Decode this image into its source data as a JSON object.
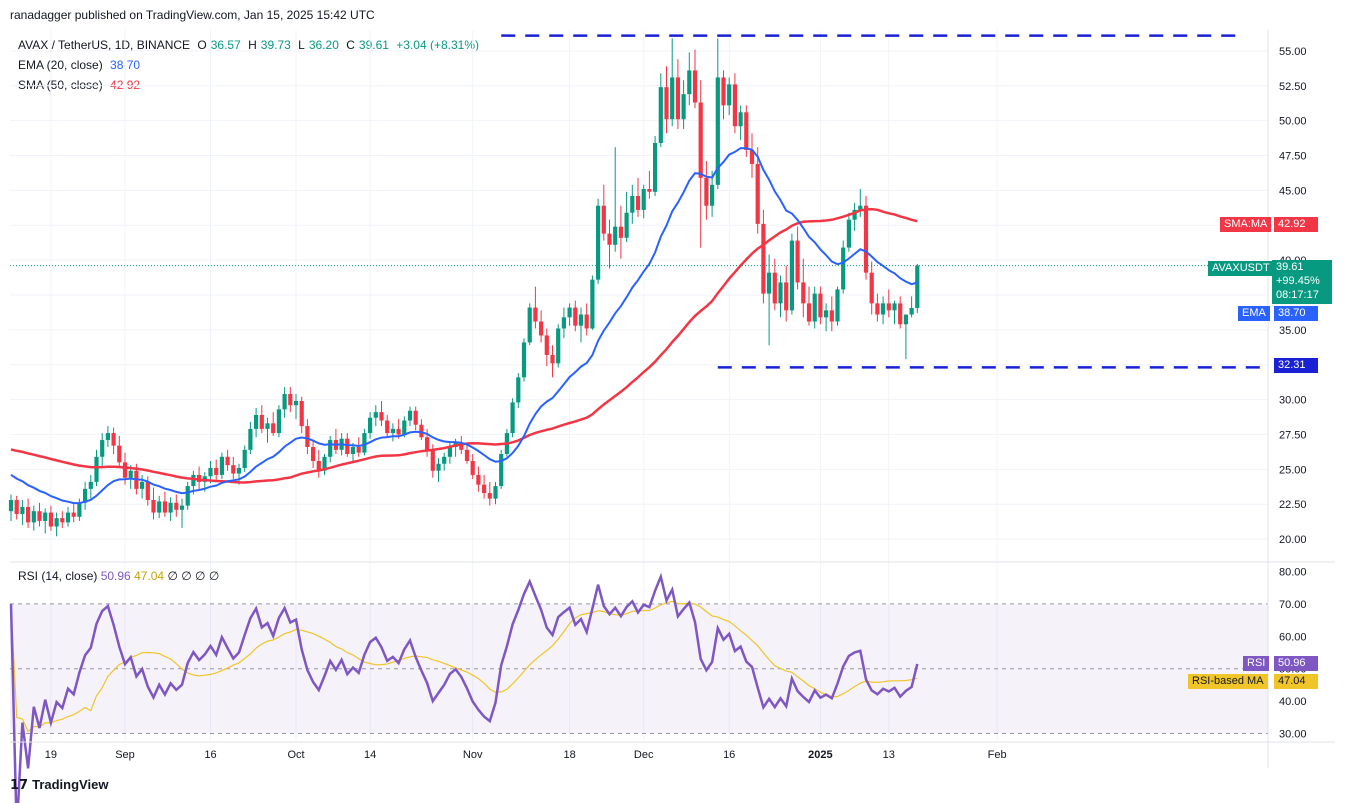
{
  "header": {
    "published": "ranadagger published on TradingView.com, Jan 15, 2025 15:42 UTC"
  },
  "legend": {
    "symbol": "AVAX / TetherUS, 1D, BINANCE",
    "o_label": "O",
    "o": "36.57",
    "h_label": "H",
    "h": "39.73",
    "l_label": "L",
    "l": "36.20",
    "c_label": "C",
    "c": "39.61",
    "change": "+3.04 (+8.31%)",
    "ema_label": "EMA (20, close)",
    "ema_value": "38.70",
    "sma_label": "SMA (50, close)",
    "sma_value": "42.92"
  },
  "rsi_legend": {
    "label": "RSI (14, close)",
    "rsi": "50.96",
    "rsima": "47.04",
    "extras": "∅ ∅ ∅ ∅"
  },
  "currency": "USDT",
  "tags": {
    "sma": {
      "label": "SMA:MA",
      "value": "42.92"
    },
    "price": {
      "label": "AVAXUSDT",
      "value": "39.61",
      "change": "+99.45%",
      "countdown": "08:17:17"
    },
    "ema": {
      "label": "EMA",
      "value": "38.70"
    },
    "support": "32.31",
    "rsi": {
      "label": "RSI",
      "value": "50.96"
    },
    "rsima": {
      "label": "RSI-based MA",
      "value": "47.04"
    }
  },
  "footer": {
    "brand": "TradingView"
  },
  "colors": {
    "up": "#089981",
    "down": "#f23645",
    "ema": "#2962ff",
    "sma": "#f23645",
    "rsi": "#7e57c2",
    "rsima": "#f0c52a",
    "level": "#1a21d4"
  },
  "chart_data": {
    "type": "candlestick",
    "price_axis": {
      "ticks": [
        "20.00",
        "22.50",
        "25.00",
        "27.50",
        "30.00",
        "32.50",
        "35.00",
        "37.50",
        "40.00",
        "42.50",
        "45.00",
        "47.50",
        "50.00",
        "52.50",
        "55.00"
      ],
      "range": [
        18.5,
        56.5
      ]
    },
    "rsi_axis": {
      "ticks": [
        "30.00",
        "40.00",
        "50.00",
        "60.00",
        "70.00",
        "80.00"
      ],
      "range": [
        28,
        82
      ],
      "bands": [
        30,
        70
      ]
    },
    "x_ticks": [
      "19",
      "Sep",
      "16",
      "Oct",
      "14",
      "Nov",
      "18",
      "Dec",
      "16",
      "2025",
      "13",
      "Feb"
    ],
    "levels": [
      {
        "name": "resistance",
        "value": 56.1
      },
      {
        "name": "support",
        "value": 32.31
      }
    ],
    "start_date": "2024-08-12",
    "candles": [
      [
        22.0,
        23.2,
        21.3,
        22.8
      ],
      [
        22.8,
        23.1,
        21.4,
        21.8
      ],
      [
        21.8,
        22.8,
        21.0,
        22.3
      ],
      [
        22.3,
        22.9,
        20.8,
        21.2
      ],
      [
        21.2,
        22.4,
        20.6,
        22.0
      ],
      [
        22.0,
        22.6,
        20.9,
        21.3
      ],
      [
        21.3,
        22.2,
        20.4,
        21.9
      ],
      [
        21.9,
        22.4,
        20.6,
        20.9
      ],
      [
        20.9,
        21.9,
        20.2,
        21.5
      ],
      [
        21.5,
        22.0,
        20.8,
        21.2
      ],
      [
        21.2,
        22.3,
        20.9,
        21.9
      ],
      [
        21.9,
        22.5,
        21.2,
        21.6
      ],
      [
        21.6,
        22.9,
        21.3,
        22.6
      ],
      [
        22.6,
        24.1,
        22.1,
        23.6
      ],
      [
        23.6,
        24.6,
        22.9,
        24.1
      ],
      [
        24.1,
        26.4,
        23.8,
        25.9
      ],
      [
        25.9,
        27.6,
        25.2,
        27.1
      ],
      [
        27.1,
        28.1,
        26.6,
        27.6
      ],
      [
        27.6,
        28.0,
        26.1,
        26.7
      ],
      [
        26.7,
        27.4,
        25.1,
        25.5
      ],
      [
        25.5,
        26.2,
        23.9,
        24.4
      ],
      [
        24.4,
        25.3,
        23.6,
        24.9
      ],
      [
        24.9,
        25.4,
        23.2,
        23.6
      ],
      [
        23.6,
        24.6,
        22.9,
        24.1
      ],
      [
        24.1,
        24.5,
        22.4,
        22.8
      ],
      [
        22.8,
        23.7,
        21.4,
        21.9
      ],
      [
        21.9,
        23.1,
        21.5,
        22.7
      ],
      [
        22.7,
        23.4,
        21.6,
        21.9
      ],
      [
        21.9,
        23.0,
        21.3,
        22.6
      ],
      [
        22.6,
        23.2,
        21.6,
        22.1
      ],
      [
        22.1,
        22.9,
        20.8,
        22.4
      ],
      [
        22.4,
        24.1,
        22.1,
        23.8
      ],
      [
        23.8,
        24.9,
        23.2,
        24.6
      ],
      [
        24.6,
        25.2,
        23.6,
        24.1
      ],
      [
        24.1,
        24.8,
        23.4,
        24.5
      ],
      [
        24.5,
        25.6,
        24.0,
        25.1
      ],
      [
        25.1,
        25.7,
        24.2,
        24.6
      ],
      [
        24.6,
        26.2,
        24.3,
        25.9
      ],
      [
        25.9,
        26.4,
        24.9,
        25.3
      ],
      [
        25.3,
        25.9,
        24.3,
        24.7
      ],
      [
        24.7,
        25.4,
        23.9,
        25.1
      ],
      [
        25.1,
        26.7,
        24.8,
        26.4
      ],
      [
        26.4,
        28.4,
        26.1,
        27.9
      ],
      [
        27.9,
        29.4,
        27.3,
        28.9
      ],
      [
        28.9,
        29.6,
        27.6,
        27.9
      ],
      [
        27.9,
        28.7,
        26.9,
        28.3
      ],
      [
        28.3,
        29.1,
        27.4,
        27.6
      ],
      [
        27.6,
        29.6,
        27.3,
        29.3
      ],
      [
        29.3,
        30.9,
        28.7,
        30.4
      ],
      [
        30.4,
        30.9,
        29.1,
        29.6
      ],
      [
        29.6,
        30.4,
        28.6,
        29.9
      ],
      [
        29.9,
        30.2,
        27.6,
        28.1
      ],
      [
        28.1,
        28.6,
        26.1,
        26.6
      ],
      [
        26.6,
        27.1,
        25.1,
        25.6
      ],
      [
        25.6,
        26.4,
        24.4,
        24.9
      ],
      [
        24.9,
        26.1,
        24.6,
        25.9
      ],
      [
        25.9,
        27.4,
        25.5,
        27.1
      ],
      [
        27.1,
        27.9,
        26.1,
        26.4
      ],
      [
        26.4,
        27.6,
        26.0,
        27.2
      ],
      [
        27.2,
        27.6,
        25.9,
        26.1
      ],
      [
        26.1,
        26.9,
        25.5,
        26.6
      ],
      [
        26.6,
        27.3,
        25.9,
        26.2
      ],
      [
        26.2,
        27.9,
        26.0,
        27.6
      ],
      [
        27.6,
        29.1,
        27.2,
        28.7
      ],
      [
        28.7,
        29.6,
        28.1,
        29.1
      ],
      [
        29.1,
        29.9,
        28.1,
        28.5
      ],
      [
        28.5,
        28.9,
        27.3,
        27.6
      ],
      [
        27.6,
        28.3,
        27.0,
        27.9
      ],
      [
        27.9,
        28.6,
        27.2,
        27.5
      ],
      [
        27.5,
        28.8,
        27.3,
        28.5
      ],
      [
        28.5,
        29.5,
        28.1,
        29.2
      ],
      [
        29.2,
        29.5,
        27.8,
        28.2
      ],
      [
        28.2,
        28.6,
        27.1,
        27.3
      ],
      [
        27.3,
        27.9,
        25.9,
        26.4
      ],
      [
        26.4,
        26.8,
        24.4,
        24.9
      ],
      [
        24.9,
        25.8,
        24.1,
        25.4
      ],
      [
        25.4,
        26.2,
        24.9,
        25.9
      ],
      [
        25.9,
        26.9,
        25.4,
        26.6
      ],
      [
        26.6,
        27.2,
        25.9,
        26.9
      ],
      [
        26.9,
        27.4,
        26.1,
        26.4
      ],
      [
        26.4,
        26.9,
        25.4,
        25.6
      ],
      [
        25.6,
        26.1,
        24.3,
        24.6
      ],
      [
        24.6,
        25.2,
        23.4,
        23.9
      ],
      [
        23.9,
        24.6,
        22.9,
        23.3
      ],
      [
        23.3,
        24.1,
        22.4,
        22.9
      ],
      [
        22.9,
        24.1,
        22.5,
        23.8
      ],
      [
        23.8,
        26.4,
        23.6,
        26.1
      ],
      [
        26.1,
        27.9,
        25.9,
        27.6
      ],
      [
        27.6,
        30.1,
        27.3,
        29.8
      ],
      [
        29.8,
        31.9,
        29.4,
        31.6
      ],
      [
        31.6,
        34.4,
        31.3,
        34.1
      ],
      [
        34.1,
        36.9,
        33.9,
        36.6
      ],
      [
        36.6,
        38.1,
        35.1,
        35.6
      ],
      [
        35.6,
        36.4,
        34.1,
        34.6
      ],
      [
        34.6,
        35.1,
        32.4,
        33.2
      ],
      [
        33.2,
        33.9,
        31.6,
        32.6
      ],
      [
        32.6,
        35.4,
        32.3,
        35.1
      ],
      [
        35.1,
        36.6,
        34.4,
        35.9
      ],
      [
        35.9,
        36.9,
        35.3,
        36.6
      ],
      [
        36.6,
        37.1,
        34.9,
        35.3
      ],
      [
        35.3,
        36.6,
        34.1,
        36.1
      ],
      [
        36.1,
        36.9,
        34.6,
        35.1
      ],
      [
        35.1,
        38.9,
        35.0,
        38.6
      ],
      [
        38.6,
        44.4,
        38.3,
        43.9
      ],
      [
        43.9,
        45.4,
        41.4,
        41.9
      ],
      [
        41.9,
        42.9,
        39.4,
        41.1
      ],
      [
        41.1,
        48.1,
        40.6,
        42.4
      ],
      [
        42.4,
        43.9,
        40.1,
        41.6
      ],
      [
        41.6,
        44.9,
        41.3,
        43.4
      ],
      [
        43.4,
        45.4,
        42.6,
        44.6
      ],
      [
        44.6,
        45.9,
        43.1,
        43.6
      ],
      [
        43.6,
        45.4,
        43.0,
        45.1
      ],
      [
        45.1,
        46.4,
        44.4,
        44.9
      ],
      [
        44.9,
        48.9,
        44.6,
        48.4
      ],
      [
        48.4,
        53.4,
        48.1,
        52.4
      ],
      [
        52.4,
        53.9,
        49.1,
        50.1
      ],
      [
        50.1,
        55.9,
        49.6,
        53.1
      ],
      [
        53.1,
        54.4,
        49.4,
        50.1
      ],
      [
        50.1,
        52.9,
        49.4,
        51.9
      ],
      [
        51.9,
        54.9,
        51.1,
        53.6
      ],
      [
        53.6,
        55.1,
        50.9,
        51.3
      ],
      [
        51.3,
        52.9,
        40.9,
        45.9
      ],
      [
        45.9,
        47.1,
        42.9,
        43.9
      ],
      [
        43.9,
        46.4,
        43.1,
        45.4
      ],
      [
        45.4,
        55.9,
        45.1,
        53.1
      ],
      [
        53.1,
        53.6,
        50.1,
        51.1
      ],
      [
        51.1,
        53.1,
        50.4,
        52.6
      ],
      [
        52.6,
        53.4,
        49.1,
        49.6
      ],
      [
        49.6,
        51.1,
        48.6,
        50.6
      ],
      [
        50.6,
        51.1,
        47.4,
        47.9
      ],
      [
        47.9,
        49.1,
        45.9,
        46.9
      ],
      [
        46.9,
        48.1,
        41.9,
        42.6
      ],
      [
        42.6,
        43.6,
        36.9,
        37.6
      ],
      [
        37.6,
        40.4,
        33.9,
        39.1
      ],
      [
        39.1,
        40.1,
        36.4,
        36.9
      ],
      [
        36.9,
        38.9,
        35.9,
        38.4
      ],
      [
        38.4,
        39.6,
        35.6,
        36.4
      ],
      [
        36.4,
        41.9,
        36.1,
        41.4
      ],
      [
        41.4,
        42.4,
        37.9,
        38.4
      ],
      [
        38.4,
        40.1,
        35.9,
        36.9
      ],
      [
        36.9,
        38.1,
        35.3,
        35.6
      ],
      [
        35.6,
        38.1,
        35.1,
        37.6
      ],
      [
        37.6,
        38.1,
        35.4,
        35.9
      ],
      [
        35.9,
        36.9,
        34.9,
        36.4
      ],
      [
        36.4,
        37.4,
        34.9,
        35.6
      ],
      [
        35.6,
        38.1,
        35.3,
        37.9
      ],
      [
        37.9,
        41.4,
        37.6,
        40.9
      ],
      [
        40.9,
        43.4,
        40.6,
        42.9
      ],
      [
        42.9,
        44.1,
        42.1,
        43.6
      ],
      [
        43.6,
        45.1,
        43.1,
        43.9
      ],
      [
        43.9,
        44.6,
        38.6,
        39.1
      ],
      [
        39.1,
        39.9,
        36.1,
        36.9
      ],
      [
        36.9,
        37.6,
        35.6,
        36.1
      ],
      [
        36.1,
        37.4,
        35.4,
        36.9
      ],
      [
        36.9,
        37.9,
        35.9,
        36.4
      ],
      [
        36.4,
        37.1,
        35.4,
        36.9
      ],
      [
        36.9,
        37.4,
        35.1,
        35.4
      ],
      [
        35.4,
        36.1,
        32.9,
        36.1
      ],
      [
        36.1,
        37.4,
        35.9,
        36.57
      ],
      [
        36.57,
        39.73,
        36.2,
        39.61
      ]
    ],
    "ema20": {
      "name": "EMA (20, close)",
      "first": 24.6,
      "last": 38.7
    },
    "sma50": {
      "name": "SMA (50, close)",
      "first": 26.5,
      "last": 42.92
    }
  }
}
